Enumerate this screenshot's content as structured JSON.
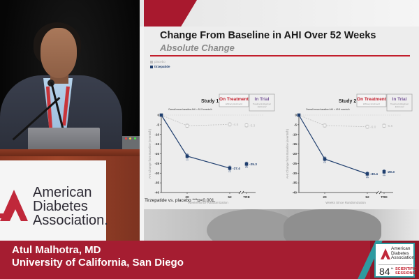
{
  "video": {
    "podium_sign": {
      "org_line1": "American",
      "org_line2": "Diabetes",
      "org_line3": "Association."
    }
  },
  "slide": {
    "title": "Change From Baseline in AHI Over 52 Weeks",
    "subtitle": "Absolute Change",
    "legend": [
      {
        "label": "placebo",
        "color": "#bdbdbd"
      },
      {
        "label": "tirzepatide",
        "color": "#1f3e6e"
      }
    ],
    "footnote": "Tirzepatide vs. placebo ***p<0.001.",
    "colors": {
      "accent_red": "#c21e2c",
      "tirzepatide": "#1f3e6e",
      "placebo": "#bdbdbd",
      "in_trial": "#7a5a9a"
    }
  },
  "chart_data": [
    {
      "type": "line",
      "title": "Study 1",
      "baseline_note": "Overall mean baseline AHI = 51.5 events/h",
      "on_treatment": {
        "label": "On Treatment",
        "sublabel": "Efficacy Estimand"
      },
      "in_trial": {
        "label": "In Trial",
        "sublabel": "Treatment-Regimen Estimand"
      },
      "xlabel": "Weeks Since Randomization",
      "ylabel": "AHI Change from Baseline (events/h)",
      "x_ticks": [
        "20",
        "52",
        "TRE"
      ],
      "y_ticks": [
        0,
        -5,
        -10,
        -15,
        -20,
        -25,
        -30,
        -35,
        -40
      ],
      "ylim": [
        -40,
        0
      ],
      "series": [
        {
          "name": "placebo",
          "x": [
            0,
            20,
            52
          ],
          "values": [
            0,
            -5.5,
            -4.8
          ],
          "tre": -5.3,
          "labels": [
            "",
            "",
            "-4.8"
          ],
          "tre_label": "-5.3"
        },
        {
          "name": "tirzepatide",
          "x": [
            0,
            20,
            52
          ],
          "values": [
            0,
            -21.2,
            -27.4
          ],
          "tre": -25.3,
          "labels": [
            "",
            "",
            "-27.4"
          ],
          "tre_label": "-25.3",
          "significance": "***"
        }
      ]
    },
    {
      "type": "line",
      "title": "Study 2",
      "baseline_note": "Overall mean baseline AHI = 49.5 events/h",
      "on_treatment": {
        "label": "On Treatment",
        "sublabel": "Efficacy Estimand"
      },
      "in_trial": {
        "label": "In Trial",
        "sublabel": "Treatment-Regimen Estimand"
      },
      "xlabel": "Weeks Since Randomization",
      "ylabel": "AHI Change from Baseline (events/h)",
      "x_ticks": [
        "20",
        "52",
        "TRE"
      ],
      "y_ticks": [
        0,
        -5,
        -10,
        -15,
        -20,
        -25,
        -30,
        -35,
        -40
      ],
      "ylim": [
        -40,
        0
      ],
      "series": [
        {
          "name": "placebo",
          "x": [
            0,
            20,
            52
          ],
          "values": [
            0,
            -5.4,
            -6.0
          ],
          "tre": -5.5,
          "labels": [
            "",
            "",
            "-6.0"
          ],
          "tre_label": "-5.5"
        },
        {
          "name": "tirzepatide",
          "x": [
            0,
            20,
            52
          ],
          "values": [
            0,
            -22.7,
            -30.4
          ],
          "tre": -29.3,
          "labels": [
            "",
            "",
            "-30.4"
          ],
          "tre_label": "-29.3",
          "significance": "***"
        }
      ]
    }
  ],
  "lower_third": {
    "name": "Atul Malhotra, MD",
    "affiliation": "University of California, San Diego",
    "badge": {
      "org_line1": "American",
      "org_line2": "Diabetes",
      "org_line3": "Association.",
      "edition": "84",
      "edition_suffix": "th",
      "event_line1": "SCIENTIFIC",
      "event_line2": "SESSIONS"
    }
  }
}
